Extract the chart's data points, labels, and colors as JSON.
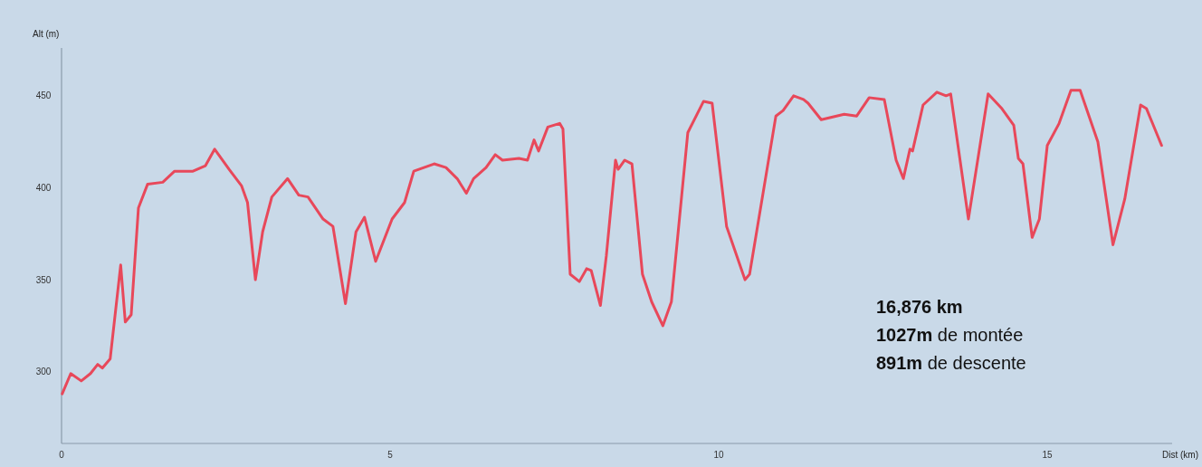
{
  "chart_data": {
    "type": "line",
    "xlabel": "Dist (km)",
    "ylabel": "Alt (m)",
    "xlim": [
      0,
      16.9
    ],
    "ylim": [
      261,
      476
    ],
    "xticks": [
      0,
      5,
      10,
      15
    ],
    "yticks": [
      300,
      350,
      400,
      450
    ],
    "grid": false,
    "marker": "none",
    "line_style": "solid",
    "annotations": [
      "16,876 km",
      "1027m de montée",
      "891m de descente"
    ],
    "series": [
      {
        "color": "#e8485a",
        "x": [
          0.01,
          0.14,
          0.3,
          0.44,
          0.55,
          0.62,
          0.74,
          0.9,
          0.97,
          1.06,
          1.17,
          1.31,
          1.54,
          1.72,
          2.0,
          2.19,
          2.33,
          2.55,
          2.74,
          2.83,
          2.95,
          3.06,
          3.2,
          3.44,
          3.61,
          3.75,
          3.98,
          4.13,
          4.32,
          4.48,
          4.61,
          4.78,
          5.03,
          5.22,
          5.36,
          5.67,
          5.85,
          6.02,
          6.16,
          6.27,
          6.46,
          6.6,
          6.71,
          6.96,
          7.09,
          7.19,
          7.26,
          7.4,
          7.58,
          7.63,
          7.74,
          7.88,
          7.99,
          8.06,
          8.2,
          8.29,
          8.43,
          8.47,
          8.57,
          8.68,
          8.84,
          8.98,
          9.15,
          9.28,
          9.53,
          9.77,
          9.9,
          10.12,
          10.4,
          10.47,
          10.87,
          10.98,
          11.14,
          11.29,
          11.36,
          11.56,
          11.91,
          12.1,
          12.29,
          12.52,
          12.7,
          12.81,
          12.91,
          12.95,
          13.11,
          13.32,
          13.46,
          13.53,
          13.8,
          14.1,
          14.31,
          14.49,
          14.56,
          14.63,
          14.77,
          14.88,
          15.0,
          15.18,
          15.36,
          15.5,
          15.77,
          16.0,
          16.18,
          16.42,
          16.51,
          16.74
        ],
        "values": [
          288,
          299,
          295,
          299,
          304,
          302,
          307,
          358,
          327,
          331,
          389,
          402,
          403,
          409,
          409,
          412,
          421,
          410,
          401,
          392,
          350,
          376,
          395,
          405,
          396,
          395,
          383,
          379,
          337,
          376,
          384,
          360,
          383,
          392,
          409,
          413,
          411,
          405,
          397,
          405,
          411,
          418,
          415,
          416,
          415,
          426,
          420,
          433,
          435,
          432,
          353,
          349,
          356,
          355,
          336,
          363,
          415,
          410,
          415,
          413,
          353,
          338,
          325,
          338,
          430,
          447,
          446,
          379,
          350,
          353,
          439,
          442,
          450,
          448,
          446,
          437,
          440,
          439,
          449,
          448,
          415,
          405,
          421,
          420,
          445,
          452,
          450,
          451,
          383,
          451,
          443,
          434,
          416,
          413,
          373,
          383,
          423,
          435,
          453,
          453,
          425,
          369,
          394,
          445,
          443,
          423
        ]
      }
    ]
  }
}
